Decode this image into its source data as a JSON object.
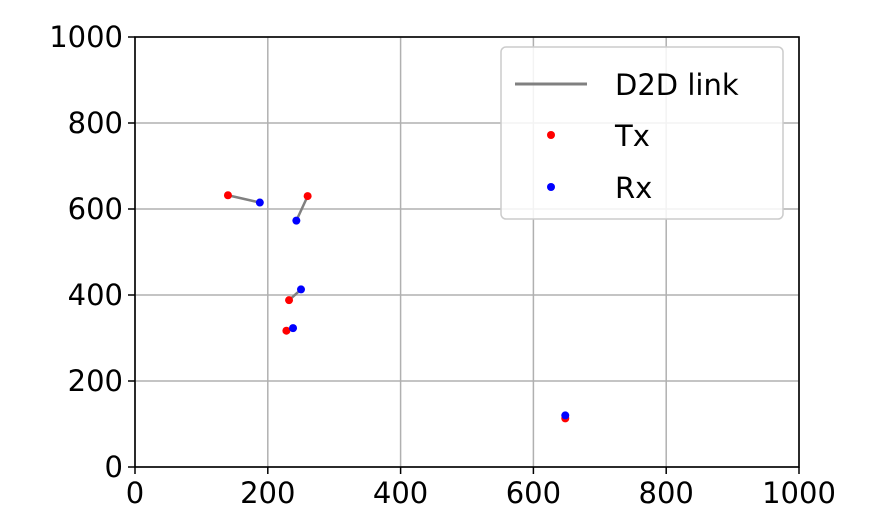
{
  "chart_data": {
    "type": "scatter",
    "xlim": [
      0,
      1000
    ],
    "ylim": [
      0,
      1000
    ],
    "x_ticks": [
      "0",
      "200",
      "400",
      "600",
      "800",
      "1000"
    ],
    "y_ticks": [
      "0",
      "200",
      "400",
      "600",
      "800",
      "1000"
    ],
    "grid": true,
    "legend_position": "top-right",
    "legend": {
      "link": "D2D link",
      "tx": "Tx",
      "rx": "Rx"
    },
    "colors": {
      "link": "#808080",
      "tx": "#ff0000",
      "rx": "#0000ff",
      "grid": "#b0b0b0"
    },
    "series": [
      {
        "name": "D2D link",
        "pairs": [
          {
            "tx": [
              140,
              632
            ],
            "rx": [
              188,
              615
            ]
          },
          {
            "tx": [
              260,
              630
            ],
            "rx": [
              243,
              573
            ]
          },
          {
            "tx": [
              232,
              388
            ],
            "rx": [
              250,
              413
            ]
          },
          {
            "tx": [
              228,
              317
            ],
            "rx": [
              238,
              323
            ]
          },
          {
            "tx": [
              648,
              113
            ],
            "rx": [
              648,
              120
            ]
          }
        ]
      }
    ]
  }
}
